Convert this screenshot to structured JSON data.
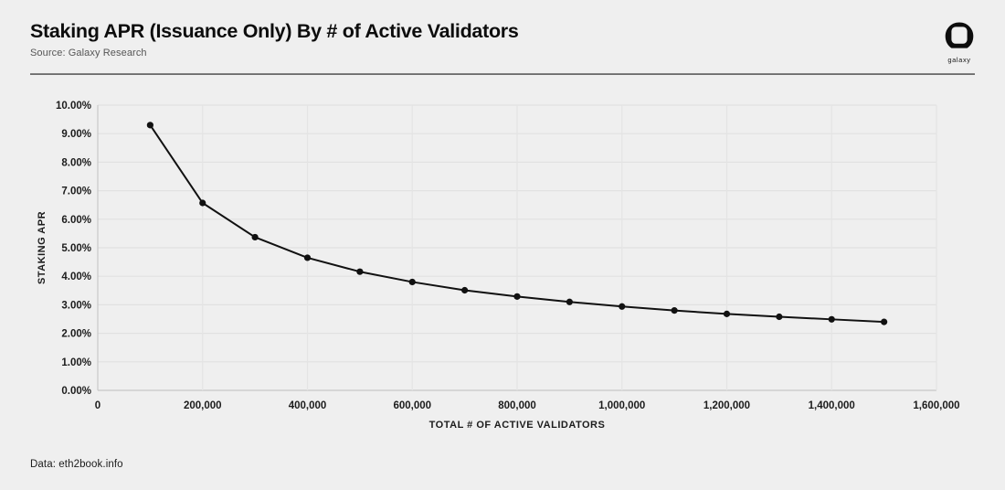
{
  "header": {
    "title": "Staking APR (Issuance Only) By # of Active Validators",
    "source": "Source: Galaxy Research",
    "logo_label": "galaxy"
  },
  "footer": {
    "data_source": "Data: eth2book.info"
  },
  "colors": {
    "background": "#efefef",
    "line": "#111111",
    "marker": "#111111",
    "grid_horizontal": "#e1e1e1",
    "grid_vertical": "#e4e4e4",
    "axis": "#c8c8c8",
    "tick_label": "#1c1c1c",
    "title_text": "#0d0d0d",
    "source_text": "#565656"
  },
  "chart_data": {
    "type": "line",
    "title": "Staking APR (Issuance Only) By # of Active Validators",
    "xlabel": "TOTAL # OF ACTIVE VALIDATORS",
    "ylabel": "STAKING APR",
    "series": [
      {
        "name": "Staking APR (Issuance Only)",
        "x": [
          100000,
          200000,
          300000,
          400000,
          500000,
          600000,
          700000,
          800000,
          900000,
          1000000,
          1100000,
          1200000,
          1300000,
          1400000,
          1500000
        ],
        "y": [
          9.3,
          6.57,
          5.37,
          4.65,
          4.16,
          3.8,
          3.51,
          3.29,
          3.1,
          2.94,
          2.8,
          2.68,
          2.58,
          2.49,
          2.4
        ]
      }
    ],
    "xlim": [
      0,
      1600000
    ],
    "ylim": [
      0,
      10
    ],
    "grid": true,
    "legend": "none",
    "marker": "circle",
    "x_ticks": [
      {
        "value": 0,
        "label": "0"
      },
      {
        "value": 200000,
        "label": "200,000"
      },
      {
        "value": 400000,
        "label": "400,000"
      },
      {
        "value": 600000,
        "label": "600,000"
      },
      {
        "value": 800000,
        "label": "800,000"
      },
      {
        "value": 1000000,
        "label": "1,000,000"
      },
      {
        "value": 1200000,
        "label": "1,200,000"
      },
      {
        "value": 1400000,
        "label": "1,400,000"
      },
      {
        "value": 1600000,
        "label": "1,600,000"
      }
    ],
    "y_ticks": [
      {
        "value": 0,
        "label": "0.00%"
      },
      {
        "value": 1,
        "label": "1.00%"
      },
      {
        "value": 2,
        "label": "2.00%"
      },
      {
        "value": 3,
        "label": "3.00%"
      },
      {
        "value": 4,
        "label": "4.00%"
      },
      {
        "value": 5,
        "label": "5.00%"
      },
      {
        "value": 6,
        "label": "6.00%"
      },
      {
        "value": 7,
        "label": "7.00%"
      },
      {
        "value": 8,
        "label": "8.00%"
      },
      {
        "value": 9,
        "label": "9.00%"
      },
      {
        "value": 10,
        "label": "10.00%"
      }
    ]
  }
}
